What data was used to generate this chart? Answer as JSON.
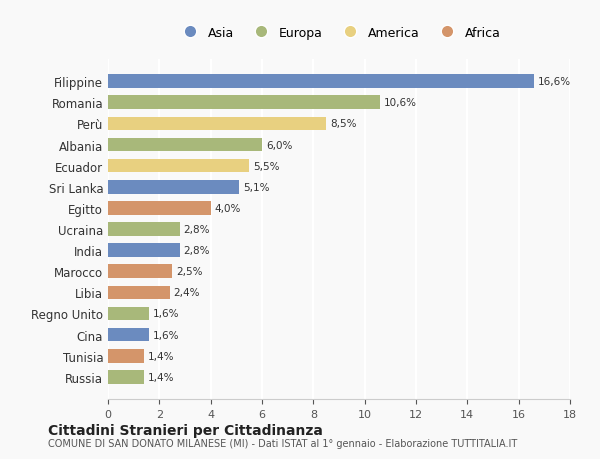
{
  "countries": [
    "Filippine",
    "Romania",
    "Perù",
    "Albania",
    "Ecuador",
    "Sri Lanka",
    "Egitto",
    "Ucraina",
    "India",
    "Marocco",
    "Libia",
    "Regno Unito",
    "Cina",
    "Tunisia",
    "Russia"
  ],
  "values": [
    16.6,
    10.6,
    8.5,
    6.0,
    5.5,
    5.1,
    4.0,
    2.8,
    2.8,
    2.5,
    2.4,
    1.6,
    1.6,
    1.4,
    1.4
  ],
  "labels": [
    "16,6%",
    "10,6%",
    "8,5%",
    "6,0%",
    "5,5%",
    "5,1%",
    "4,0%",
    "2,8%",
    "2,8%",
    "2,5%",
    "2,4%",
    "1,6%",
    "1,6%",
    "1,4%",
    "1,4%"
  ],
  "continents": [
    "Asia",
    "Europa",
    "America",
    "Europa",
    "America",
    "Asia",
    "Africa",
    "Europa",
    "Asia",
    "Africa",
    "Africa",
    "Europa",
    "Asia",
    "Africa",
    "Europa"
  ],
  "colors": {
    "Asia": "#6b8bbf",
    "Europa": "#a8b87a",
    "America": "#e8d080",
    "Africa": "#d4956a"
  },
  "legend_order": [
    "Asia",
    "Europa",
    "America",
    "Africa"
  ],
  "title": "Cittadini Stranieri per Cittadinanza",
  "subtitle": "COMUNE DI SAN DONATO MILANESE (MI) - Dati ISTAT al 1° gennaio - Elaborazione TUTTITALIA.IT",
  "xlim": [
    0,
    18
  ],
  "xticks": [
    0,
    2,
    4,
    6,
    8,
    10,
    12,
    14,
    16,
    18
  ],
  "background_color": "#f9f9f9",
  "grid_color": "#ffffff"
}
